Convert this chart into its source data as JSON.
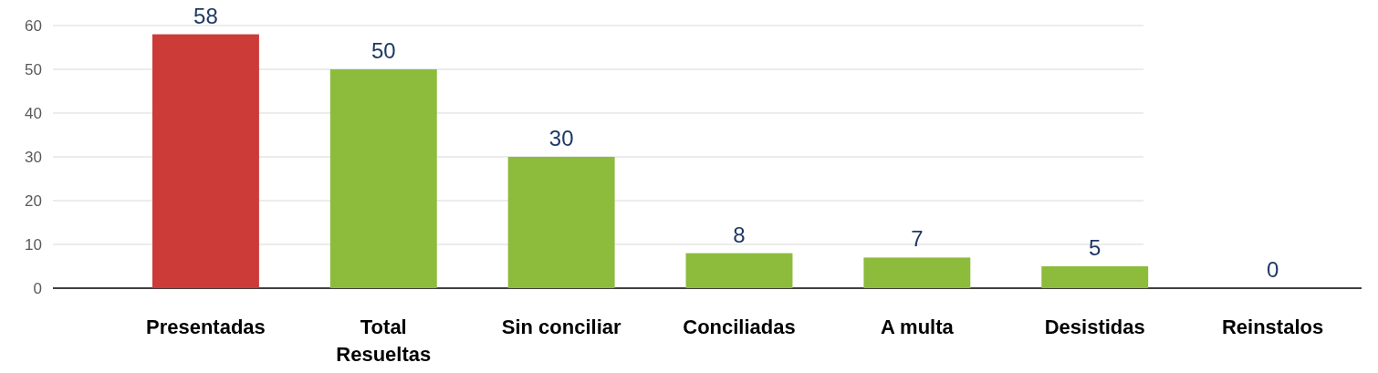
{
  "chart_data": {
    "type": "bar",
    "categories": [
      "Presentadas",
      "Total Resueltas",
      "Sin conciliar",
      "Conciliadas",
      "A multa",
      "Desistidas",
      "Reinstalos"
    ],
    "values": [
      58,
      50,
      30,
      8,
      7,
      5,
      0
    ],
    "colors": [
      "#cc3b38",
      "#8dbb3c",
      "#8dbb3c",
      "#8dbb3c",
      "#8dbb3c",
      "#8dbb3c",
      "#8dbb3c"
    ],
    "ylim": [
      0,
      60
    ],
    "yticks": [
      0,
      10,
      20,
      30,
      40,
      50,
      60
    ],
    "grid": "y",
    "data_labels": true
  }
}
